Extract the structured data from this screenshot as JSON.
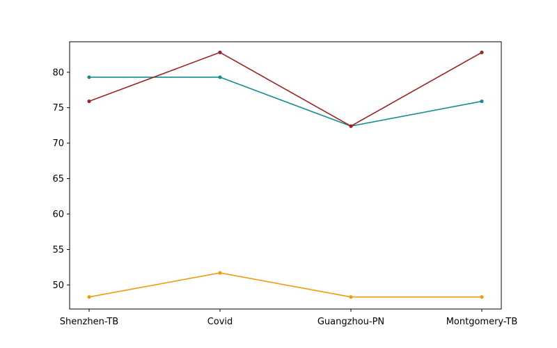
{
  "chart_data": {
    "type": "line",
    "title": "",
    "xlabel": "",
    "ylabel": "",
    "categories": [
      "Shenzhen-TB",
      "Covid",
      "Guangzhou-PN",
      "Montgomery-TB"
    ],
    "ylim": [
      46.6,
      84.3
    ],
    "yticks": [
      50,
      55,
      60,
      65,
      70,
      75,
      80
    ],
    "grid": false,
    "legend": "none",
    "series": [
      {
        "color": "#138d90",
        "values": [
          79.3,
          79.3,
          72.4,
          75.9
        ]
      },
      {
        "color": "#9a2325",
        "values": [
          75.9,
          82.8,
          72.4,
          82.8
        ]
      },
      {
        "color": "#f09a0e",
        "values": [
          48.3,
          51.7,
          48.3,
          48.3
        ]
      }
    ]
  }
}
